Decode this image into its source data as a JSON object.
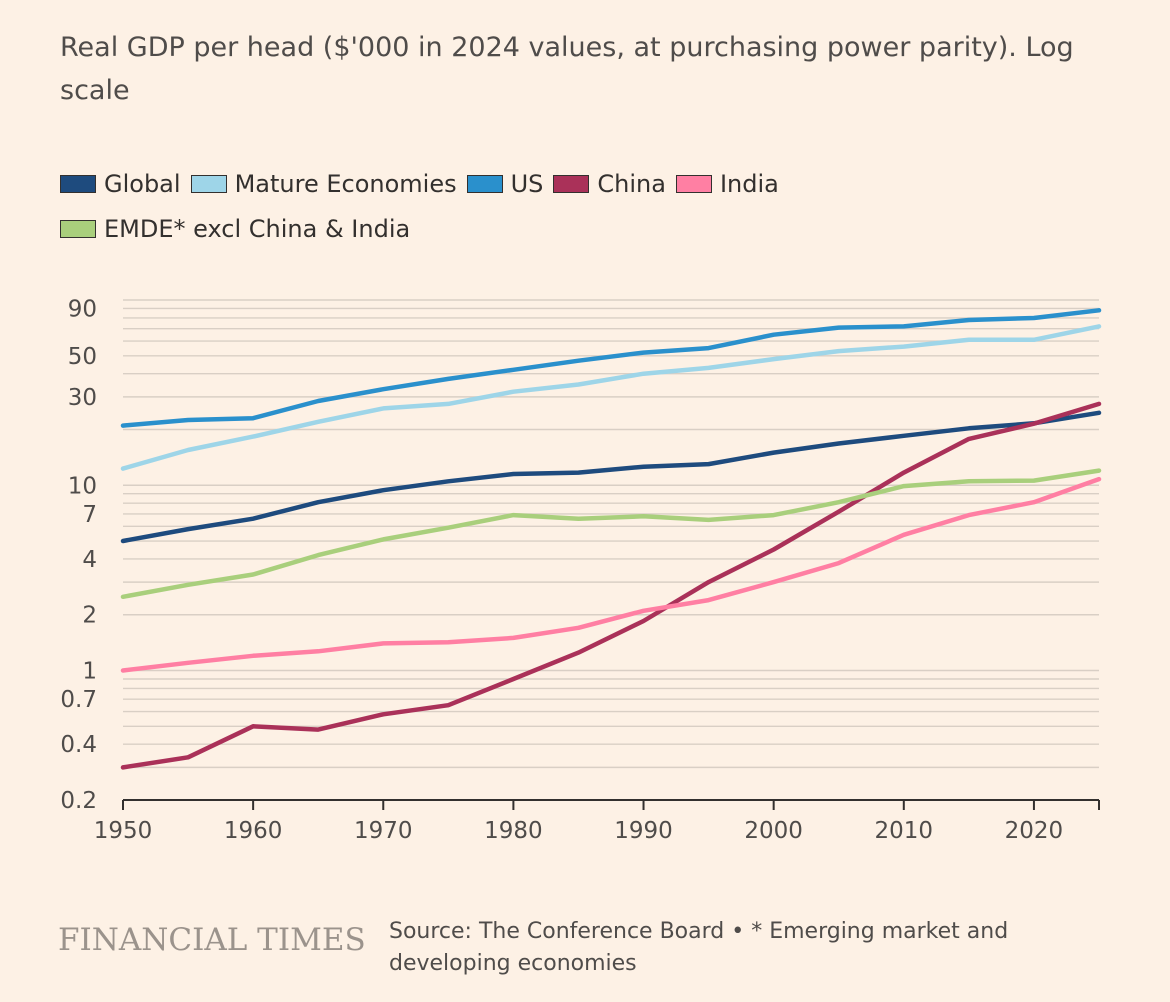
{
  "header": {
    "title": "Real GDP per head ($'000 in 2024 values, at purchasing power parity). Log scale"
  },
  "footer": {
    "logo": "FINANCIAL TIMES",
    "source": "Source: The Conference Board • * Emerging market and developing economies"
  },
  "chart_data": {
    "type": "line",
    "title": "Real GDP per head ($'000 in 2024 values, at purchasing power parity). Log scale",
    "xlabel": "",
    "ylabel": "",
    "yscale": "log",
    "ylim": [
      0.2,
      100
    ],
    "xlim": [
      1950,
      2025
    ],
    "grid": true,
    "legend_position": "top-left",
    "y_tick_labels": [
      {
        "value": 90,
        "label": "90"
      },
      {
        "value": 50,
        "label": "50"
      },
      {
        "value": 30,
        "label": "30"
      },
      {
        "value": 10,
        "label": "10"
      },
      {
        "value": 7,
        "label": "7"
      },
      {
        "value": 4,
        "label": "4"
      },
      {
        "value": 2,
        "label": "2"
      },
      {
        "value": 1,
        "label": "1"
      },
      {
        "value": 0.7,
        "label": "0.7"
      },
      {
        "value": 0.4,
        "label": "0.4"
      },
      {
        "value": 0.2,
        "label": "0.2"
      }
    ],
    "x_tick_labels": [
      {
        "value": 1950,
        "label": "1950"
      },
      {
        "value": 1960,
        "label": "1960"
      },
      {
        "value": 1970,
        "label": "1970"
      },
      {
        "value": 1980,
        "label": "1980"
      },
      {
        "value": 1990,
        "label": "1990"
      },
      {
        "value": 2000,
        "label": "2000"
      },
      {
        "value": 2010,
        "label": "2010"
      },
      {
        "value": 2020,
        "label": "2020"
      }
    ],
    "x": [
      1950,
      1955,
      1960,
      1965,
      1970,
      1975,
      1980,
      1985,
      1990,
      1995,
      2000,
      2005,
      2010,
      2015,
      2020,
      2025
    ],
    "series": [
      {
        "name": "Global",
        "color": "#1e4b7e",
        "values": [
          5.0,
          5.8,
          6.6,
          8.1,
          9.4,
          10.5,
          11.5,
          11.7,
          12.6,
          13.0,
          15.0,
          16.8,
          18.5,
          20.3,
          21.6,
          24.6
        ]
      },
      {
        "name": "Mature Economies",
        "color": "#9ed5e8",
        "values": [
          12.3,
          15.5,
          18.3,
          22.0,
          26.0,
          27.5,
          32.0,
          35.0,
          40.0,
          43.0,
          48.0,
          53.0,
          56.0,
          61.0,
          61.0,
          72.0
        ]
      },
      {
        "name": "US",
        "color": "#2a90cc",
        "values": [
          21.0,
          22.5,
          23.0,
          28.5,
          33.0,
          37.5,
          42.0,
          47.0,
          52.0,
          55.0,
          65.0,
          71.0,
          72.0,
          78.0,
          80.0,
          88.0
        ]
      },
      {
        "name": "China",
        "color": "#aa3159",
        "values": [
          0.3,
          0.34,
          0.5,
          0.48,
          0.58,
          0.65,
          0.9,
          1.25,
          1.85,
          3.0,
          4.5,
          7.2,
          11.7,
          17.8,
          21.5,
          27.5
        ]
      },
      {
        "name": "India",
        "color": "#ff7fa3",
        "values": [
          1.0,
          1.1,
          1.2,
          1.27,
          1.4,
          1.42,
          1.5,
          1.7,
          2.1,
          2.4,
          3.0,
          3.8,
          5.4,
          6.9,
          8.1,
          10.8
        ]
      },
      {
        "name": "EMDE* excl China & India",
        "color": "#a9cf7c",
        "values": [
          2.5,
          2.9,
          3.3,
          4.2,
          5.1,
          5.9,
          6.9,
          6.6,
          6.8,
          6.5,
          6.9,
          8.1,
          9.9,
          10.5,
          10.6,
          12.0
        ]
      }
    ]
  }
}
